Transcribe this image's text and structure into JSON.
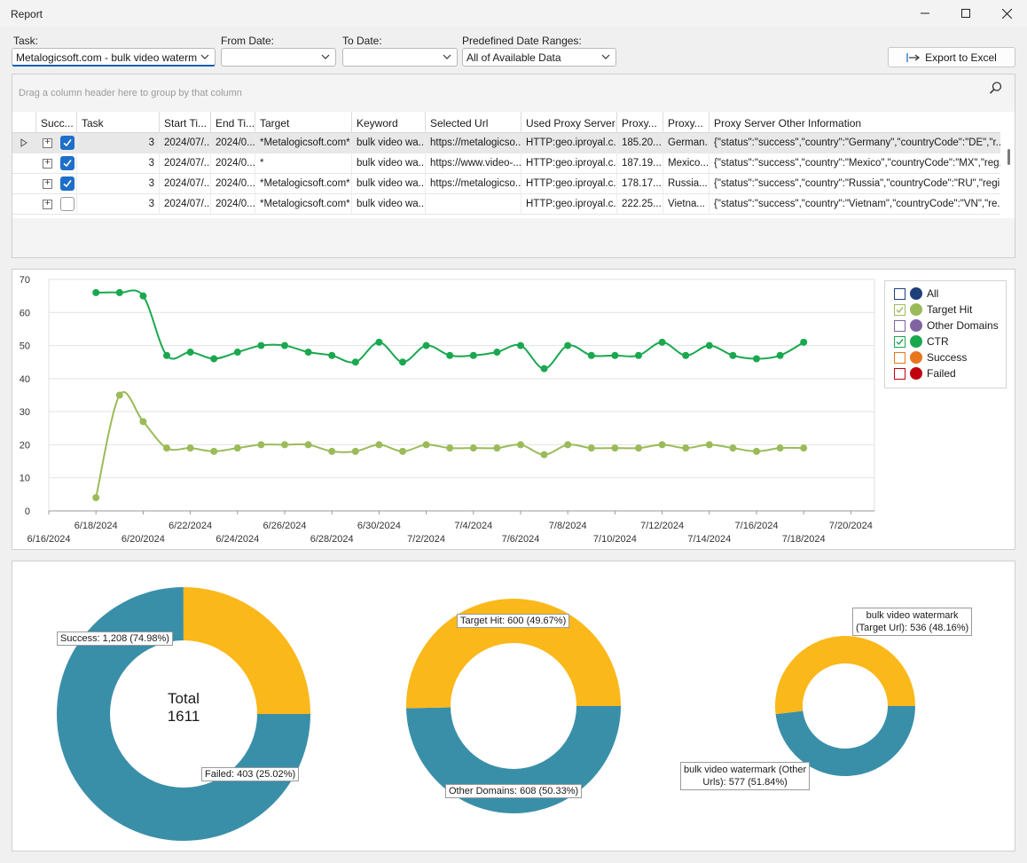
{
  "window": {
    "title": "Report"
  },
  "filters": {
    "task_label": "Task:",
    "task_value": "Metalogicsoft.com - bulk video watermark ...",
    "from_label": "From Date:",
    "from_value": "",
    "to_label": "To Date:",
    "to_value": "",
    "range_label": "Predefined Date Ranges:",
    "range_value": "All of Available Data",
    "export_label": "Export to Excel"
  },
  "grid": {
    "group_hint": "Drag a column header here to group by that column",
    "columns": [
      "Succ...",
      "Task",
      "Start Ti...",
      "End Ti...",
      "Target",
      "Keyword",
      "Selected Url",
      "Used Proxy Server",
      "Proxy...",
      "Proxy...",
      "Proxy Server Other Information"
    ],
    "rows": [
      {
        "success": true,
        "task": "3",
        "start": "2024/07/...",
        "end": "2024/0...",
        "target": "*Metalogicsoft.com*",
        "keyword": "bulk video wa...",
        "url": "https://metalogicso...",
        "proxy": "HTTP:geo.iproyal.c...",
        "ip": "185.20...",
        "country": "German...",
        "info": "{\"status\":\"success\",\"country\":\"Germany\",\"countryCode\":\"DE\",\"r..."
      },
      {
        "success": true,
        "task": "3",
        "start": "2024/07/...",
        "end": "2024/0...",
        "target": "*",
        "keyword": "bulk video wa...",
        "url": "https://www.video-...",
        "proxy": "HTTP:geo.iproyal.c...",
        "ip": "187.19...",
        "country": "Mexico...",
        "info": "{\"status\":\"success\",\"country\":\"Mexico\",\"countryCode\":\"MX\",\"reg..."
      },
      {
        "success": true,
        "task": "3",
        "start": "2024/07/...",
        "end": "2024/0...",
        "target": "*Metalogicsoft.com*",
        "keyword": "bulk video wa...",
        "url": "https://metalogicso...",
        "proxy": "HTTP:geo.iproyal.c...",
        "ip": "178.17...",
        "country": "Russia...",
        "info": "{\"status\":\"success\",\"country\":\"Russia\",\"countryCode\":\"RU\",\"regi..."
      },
      {
        "success": false,
        "task": "3",
        "start": "2024/07/...",
        "end": "2024/0...",
        "target": "*Metalogicsoft.com*",
        "keyword": "bulk video wa...",
        "url": "",
        "proxy": "HTTP:geo.iproyal.c...",
        "ip": "222.25...",
        "country": "Vietna...",
        "info": "{\"status\":\"success\",\"country\":\"Vietnam\",\"countryCode\":\"VN\",\"re..."
      }
    ]
  },
  "legend": {
    "items": [
      {
        "label": "All",
        "checked": false,
        "color": "#1f3f7a"
      },
      {
        "label": "Target Hit",
        "checked": true,
        "color": "#9bbb59"
      },
      {
        "label": "Other Domains",
        "checked": false,
        "color": "#8064a2"
      },
      {
        "label": "CTR",
        "checked": true,
        "color": "#1aa84f"
      },
      {
        "label": "Success",
        "checked": false,
        "color": "#e8761c"
      },
      {
        "label": "Failed",
        "checked": false,
        "color": "#c0000f"
      }
    ]
  },
  "chart_data": [
    {
      "type": "line",
      "x_type": "date",
      "ylim": [
        0,
        70
      ],
      "yticks": [
        0,
        10,
        20,
        30,
        40,
        50,
        60,
        70
      ],
      "grid": true,
      "legend_position": "right",
      "xtick_labels": [
        "6/16/2024",
        "6/18/2024",
        "6/20/2024",
        "6/22/2024",
        "6/24/2024",
        "6/26/2024",
        "6/28/2024",
        "6/30/2024",
        "7/2/2024",
        "7/4/2024",
        "7/6/2024",
        "7/8/2024",
        "7/10/2024",
        "7/12/2024",
        "7/14/2024",
        "7/16/2024",
        "7/18/2024",
        "7/20/2024"
      ],
      "x": [
        "2024-06-18",
        "2024-06-19",
        "2024-06-20",
        "2024-06-21",
        "2024-06-22",
        "2024-06-23",
        "2024-06-24",
        "2024-06-25",
        "2024-06-26",
        "2024-06-27",
        "2024-06-28",
        "2024-06-29",
        "2024-06-30",
        "2024-07-01",
        "2024-07-02",
        "2024-07-03",
        "2024-07-04",
        "2024-07-05",
        "2024-07-06",
        "2024-07-07",
        "2024-07-08",
        "2024-07-09",
        "2024-07-10",
        "2024-07-11",
        "2024-07-12",
        "2024-07-13",
        "2024-07-14",
        "2024-07-15",
        "2024-07-16",
        "2024-07-17",
        "2024-07-18"
      ],
      "series": [
        {
          "name": "CTR",
          "color": "#1aa84f",
          "values": [
            66,
            66,
            65,
            47,
            48,
            46,
            48,
            50,
            50,
            48,
            47,
            45,
            51,
            45,
            50,
            47,
            47,
            48,
            50,
            43,
            50,
            47,
            47,
            47,
            51,
            47,
            50,
            47,
            46,
            47,
            51
          ]
        },
        {
          "name": "Target Hit",
          "color": "#9bbb59",
          "values": [
            4,
            35,
            27,
            19,
            19,
            18,
            19,
            20,
            20,
            20,
            18,
            18,
            20,
            18,
            20,
            19,
            19,
            19,
            20,
            17,
            20,
            19,
            19,
            19,
            20,
            19,
            20,
            19,
            18,
            19,
            19
          ]
        }
      ]
    },
    {
      "type": "pie",
      "total_label": "Total",
      "total_value": "1611",
      "slices": [
        {
          "name": "Success",
          "value": 1208,
          "label": "Success: 1,208 (74.98%)",
          "color": "#3a8fa8"
        },
        {
          "name": "Failed",
          "value": 403,
          "label": "Failed: 403 (25.02%)",
          "color": "#fbb81a"
        }
      ]
    },
    {
      "type": "pie",
      "slices": [
        {
          "name": "Target Hit",
          "value": 600,
          "label": "Target Hit: 600 (49.67%)",
          "color": "#3a8fa8"
        },
        {
          "name": "Other Domains",
          "value": 608,
          "label": "Other Domains: 608 (50.33%)",
          "color": "#fbb81a"
        }
      ]
    },
    {
      "type": "pie",
      "slices": [
        {
          "name": "bulk video watermark (Target Url)",
          "value": 536,
          "label_line1": "bulk video watermark",
          "label_line2": "(Target Url): 536 (48.16%)",
          "color": "#3a8fa8"
        },
        {
          "name": "bulk video watermark (Other Urls)",
          "value": 577,
          "label_line1": "bulk video watermark (Other",
          "label_line2": "Urls): 577 (51.84%)",
          "color": "#fbb81a"
        }
      ]
    }
  ]
}
